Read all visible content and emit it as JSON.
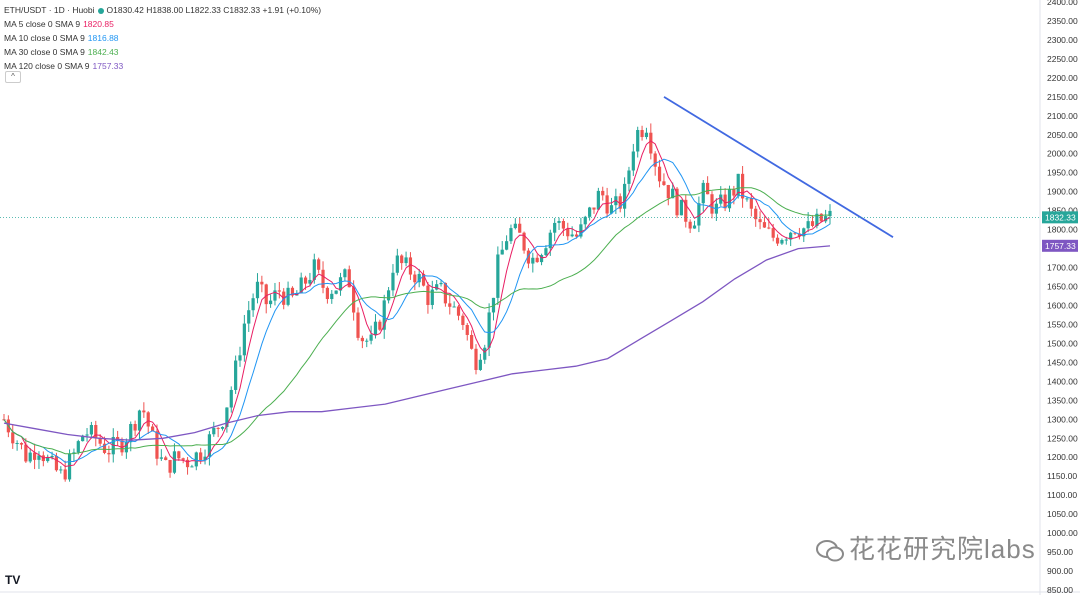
{
  "header": {
    "symbol": "ETH/USDT · 1D · Huobi",
    "ohlc": "O1830.42 H1838.00 L1822.33 C1832.33 +1.91 (+0.10%)"
  },
  "indicators": [
    {
      "label": "MA 5 close 0 SMA 9",
      "value": "1820.85",
      "color": "#e91e63"
    },
    {
      "label": "MA 10 close 0 SMA 9",
      "value": "1816.88",
      "color": "#2196f3"
    },
    {
      "label": "MA 30 close 0 SMA 9",
      "value": "1842.43",
      "color": "#4caf50"
    },
    {
      "label": "MA 120 close 0 SMA 9",
      "value": "1757.33",
      "color": "#7e57c2"
    }
  ],
  "collapse_symbol": "^",
  "logo_text": "TV",
  "watermark_text": "花花研究院labs",
  "colors": {
    "up": "#26a69a",
    "down": "#ef5350",
    "trendline": "#4169e1"
  },
  "chart_data": {
    "type": "candlestick",
    "y_range": [
      850,
      2400
    ],
    "y_ticks": [
      850,
      900,
      950,
      1000,
      1050,
      1100,
      1150,
      1200,
      1250,
      1300,
      1350,
      1400,
      1450,
      1500,
      1550,
      1600,
      1650,
      1700,
      1750,
      1800,
      1850,
      1900,
      1950,
      2000,
      2050,
      2100,
      2150,
      2200,
      2250,
      2300,
      2350,
      2400
    ],
    "last_price": 1832.33,
    "ma120_last": 1757.33,
    "close_path": [
      1300,
      1250,
      1200,
      1230,
      1180,
      1150,
      1200,
      1270,
      1250,
      1220,
      1230,
      1270,
      1340,
      1240,
      1170,
      1200,
      1190,
      1210,
      1250,
      1300,
      1400,
      1560,
      1650,
      1600,
      1640,
      1610,
      1650,
      1700,
      1640,
      1650,
      1680,
      1520,
      1500,
      1580,
      1720,
      1700,
      1680,
      1620,
      1640,
      1600,
      1560,
      1450,
      1520,
      1700,
      1800,
      1780,
      1720,
      1760,
      1820,
      1800,
      1780,
      1840,
      1900,
      1850,
      1880,
      2050,
      2080,
      1950,
      1900,
      1850,
      1820,
      1900,
      1850,
      1880,
      1920,
      1850,
      1800,
      1780,
      1790,
      1810,
      1800,
      1820,
      1832
    ],
    "ma120": [
      1290,
      1275,
      1260,
      1250,
      1245,
      1250,
      1265,
      1290,
      1310,
      1320,
      1320,
      1330,
      1340,
      1360,
      1380,
      1400,
      1420,
      1430,
      1440,
      1460,
      1510,
      1560,
      1610,
      1670,
      1720,
      1750,
      1757
    ],
    "trendline": {
      "start_price": 2150,
      "end_price": 1780
    },
    "series": [
      {
        "name": "MA 5"
      },
      {
        "name": "MA 10"
      },
      {
        "name": "MA 30"
      },
      {
        "name": "MA 120"
      }
    ]
  }
}
